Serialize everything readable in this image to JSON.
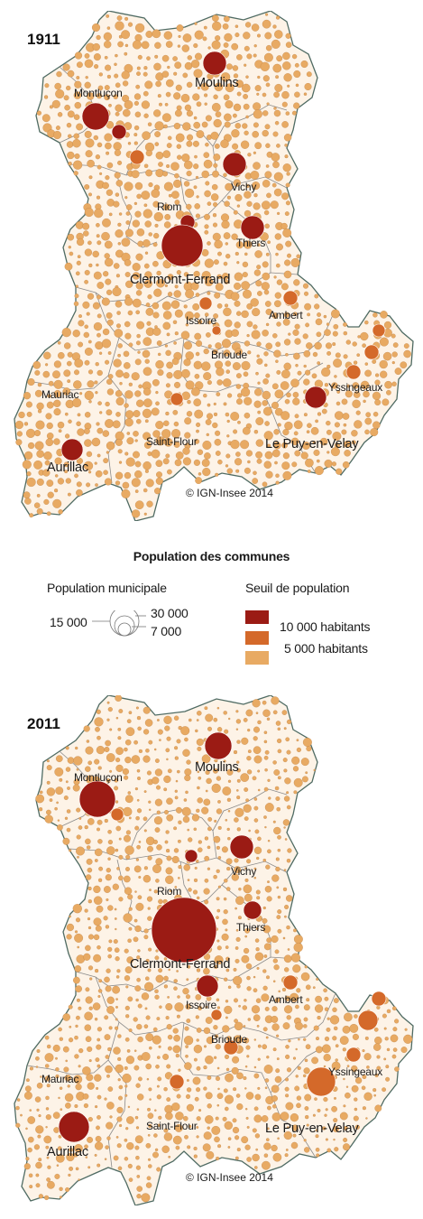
{
  "maps": [
    {
      "year": "1911",
      "cities": [
        {
          "id": "moulins",
          "name": "Moulins",
          "size": "big"
        },
        {
          "id": "montlucon",
          "name": "Montluçon",
          "size": "normal"
        },
        {
          "id": "vichy",
          "name": "Vichy",
          "size": "normal"
        },
        {
          "id": "riom",
          "name": "Riom",
          "size": "normal"
        },
        {
          "id": "thiers",
          "name": "Thiers",
          "size": "normal"
        },
        {
          "id": "clermont",
          "name": "Clermont-Ferrand",
          "size": "big"
        },
        {
          "id": "issoire",
          "name": "Issoire",
          "size": "normal"
        },
        {
          "id": "ambert",
          "name": "Ambert",
          "size": "normal"
        },
        {
          "id": "brioude",
          "name": "Brioude",
          "size": "normal"
        },
        {
          "id": "mauriac",
          "name": "Mauriac",
          "size": "normal"
        },
        {
          "id": "yssingeaux",
          "name": "Yssingeaux",
          "size": "normal"
        },
        {
          "id": "saintflour",
          "name": "Saint-Flour",
          "size": "normal"
        },
        {
          "id": "lepuy",
          "name": "Le Puy-en-Velay",
          "size": "big"
        },
        {
          "id": "aurillac",
          "name": "Aurillac",
          "size": "big"
        }
      ],
      "copyright": "© IGN-Insee 2014"
    },
    {
      "year": "2011",
      "cities": [
        {
          "id": "moulins",
          "name": "Moulins",
          "size": "big"
        },
        {
          "id": "montlucon",
          "name": "Montluçon",
          "size": "normal"
        },
        {
          "id": "vichy",
          "name": "Vichy",
          "size": "normal"
        },
        {
          "id": "riom",
          "name": "Riom",
          "size": "normal"
        },
        {
          "id": "thiers",
          "name": "Thiers",
          "size": "normal"
        },
        {
          "id": "clermont",
          "name": "Clermont-Ferrand",
          "size": "big"
        },
        {
          "id": "issoire",
          "name": "Issoire",
          "size": "normal"
        },
        {
          "id": "ambert",
          "name": "Ambert",
          "size": "normal"
        },
        {
          "id": "brioude",
          "name": "Brioude",
          "size": "normal"
        },
        {
          "id": "mauriac",
          "name": "Mauriac",
          "size": "normal"
        },
        {
          "id": "yssingeaux",
          "name": "Yssingeaux",
          "size": "normal"
        },
        {
          "id": "saintflour",
          "name": "Saint-Flour",
          "size": "normal"
        },
        {
          "id": "lepuy",
          "name": "Le Puy-en-Velay",
          "size": "big"
        },
        {
          "id": "aurillac",
          "name": "Aurillac",
          "size": "big"
        }
      ],
      "copyright": "© IGN-Insee 2014"
    }
  ],
  "legend": {
    "title": "Population des communes",
    "population_heading": "Population municipale",
    "population_values": {
      "large": "30 000",
      "medium": "15 000",
      "small": "7 000"
    },
    "threshold_heading": "Seuil de population",
    "thresholds": [
      {
        "label": "10 000 habitants",
        "color": "#9b1b14"
      },
      {
        "label": "5 000 habitants",
        "color": "#d4692a"
      },
      {
        "label": "",
        "color": "#e8aa63"
      }
    ]
  },
  "colors": {
    "background": "#fdf3e7",
    "border": "#4f6b63",
    "internal_border": "#8a8a8a",
    "small_circle": "#e8aa63",
    "medium_circle": "#d4692a",
    "large_circle": "#9b1b14"
  }
}
